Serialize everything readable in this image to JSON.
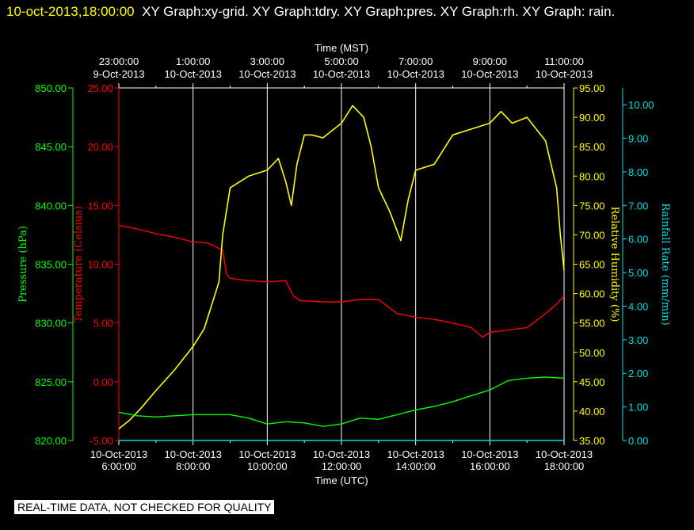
{
  "header": {
    "timestamp": "10-oct-2013,18:00:00",
    "caption": "XY Graph:xy-grid.  XY Graph:tdry.  XY Graph:pres.  XY Graph:rh.  XY Graph: rain."
  },
  "disclaimer": "REAL-TIME DATA, NOT CHECKED FOR QUALITY",
  "colors": {
    "pressure": "#00ff00",
    "temperature": "#ff0000",
    "humidity": "#ffff00",
    "rain": "#00e0e0",
    "grid": "#ffffff",
    "background": "#000000"
  },
  "chart_data": {
    "type": "line",
    "grid": true,
    "xlabel_bottom": "Time (UTC)",
    "xlabel_top": "Time (MST)",
    "x_ticks_bottom": [
      {
        "date": "10-Oct-2013",
        "time": "6:00:00"
      },
      {
        "date": "10-Oct-2013",
        "time": "8:00:00"
      },
      {
        "date": "10-Oct-2013",
        "time": "10:00:00"
      },
      {
        "date": "10-Oct-2013",
        "time": "12:00:00"
      },
      {
        "date": "10-Oct-2013",
        "time": "14:00:00"
      },
      {
        "date": "10-Oct-2013",
        "time": "16:00:00"
      },
      {
        "date": "10-Oct-2013",
        "time": "18:00:00"
      }
    ],
    "x_ticks_top": [
      {
        "time": "23:00:00",
        "date": "9-Oct-2013"
      },
      {
        "time": "1:00:00",
        "date": "10-Oct-2013"
      },
      {
        "time": "3:00:00",
        "date": "10-Oct-2013"
      },
      {
        "time": "5:00:00",
        "date": "10-Oct-2013"
      },
      {
        "time": "7:00:00",
        "date": "10-Oct-2013"
      },
      {
        "time": "9:00:00",
        "date": "10-Oct-2013"
      },
      {
        "time": "11:00:00",
        "date": "10-Oct-2013"
      }
    ],
    "xlim": [
      6,
      19
    ],
    "axes": {
      "pressure": {
        "label": "Pressure (hPa)",
        "ylim": [
          820,
          850
        ],
        "ticks": [
          "820.00",
          "825.00",
          "830.00",
          "835.00",
          "840.00",
          "845.00",
          "850.00"
        ]
      },
      "temperature": {
        "label": "Temperature (Celsius)",
        "ylim": [
          -5,
          25
        ],
        "ticks": [
          "-5.00",
          "0.00",
          "5.00",
          "10.00",
          "15.00",
          "20.00",
          "25.00"
        ]
      },
      "humidity": {
        "label": "Relative Humidity (%)",
        "ylim": [
          35,
          95
        ],
        "ticks": [
          "35.00",
          "40.00",
          "45.00",
          "50.00",
          "55.00",
          "60.00",
          "65.00",
          "70.00",
          "75.00",
          "80.00",
          "85.00",
          "90.00",
          "95.00"
        ]
      },
      "rain": {
        "label": "Rainfall Rate (mm/min)",
        "ylim": [
          0,
          10.5
        ],
        "ticks": [
          "0.00",
          "1.00",
          "2.00",
          "3.00",
          "4.00",
          "5.00",
          "6.00",
          "7.00",
          "8.00",
          "9.00",
          "10.00"
        ]
      }
    },
    "series": [
      {
        "name": "Temperature",
        "axis": "temperature",
        "x": [
          6.0,
          6.5,
          7.0,
          7.5,
          8.0,
          8.4,
          8.8,
          8.9,
          9.0,
          9.5,
          10.0,
          10.5,
          10.7,
          10.9,
          11.5,
          12.0,
          12.5,
          13.0,
          13.5,
          14.0,
          14.5,
          15.0,
          15.5,
          15.8,
          16.0,
          16.5,
          17.0,
          17.5,
          17.8,
          18.0
        ],
        "y": [
          13.3,
          13.0,
          12.6,
          12.3,
          11.9,
          11.8,
          11.2,
          9.2,
          8.8,
          8.6,
          8.5,
          8.6,
          7.3,
          6.9,
          6.8,
          6.8,
          7.0,
          7.0,
          5.8,
          5.5,
          5.3,
          5.0,
          4.6,
          3.8,
          4.2,
          4.4,
          4.6,
          5.8,
          6.6,
          7.3
        ]
      },
      {
        "name": "Relative Humidity",
        "axis": "humidity",
        "x": [
          6.0,
          6.3,
          6.6,
          7.0,
          7.5,
          8.0,
          8.3,
          8.7,
          8.8,
          8.9,
          9.0,
          9.5,
          10.0,
          10.3,
          10.5,
          10.65,
          10.8,
          11.0,
          11.2,
          11.5,
          12.0,
          12.3,
          12.6,
          12.8,
          13.0,
          13.3,
          13.6,
          13.8,
          14.0,
          14.5,
          15.0,
          15.5,
          16.0,
          16.3,
          16.6,
          17.0,
          17.5,
          17.8,
          17.9,
          18.0
        ],
        "y": [
          37.0,
          38.5,
          40.5,
          43.5,
          47.0,
          51.0,
          54.0,
          62.0,
          70.0,
          74.0,
          78.0,
          80.0,
          81.0,
          83.0,
          79.0,
          75.0,
          82.0,
          87.0,
          87.0,
          86.5,
          89.0,
          92.0,
          90.0,
          85.0,
          78.0,
          74.0,
          69.0,
          76.0,
          81.0,
          82.0,
          87.0,
          88.0,
          89.0,
          91.0,
          89.0,
          90.0,
          86.0,
          78.0,
          70.0,
          64.0
        ]
      },
      {
        "name": "Pressure",
        "axis": "pressure",
        "x": [
          6.0,
          6.5,
          7.0,
          7.5,
          8.0,
          8.5,
          9.0,
          9.5,
          10.0,
          10.5,
          11.0,
          11.5,
          12.0,
          12.5,
          13.0,
          13.5,
          14.0,
          14.5,
          15.0,
          15.5,
          16.0,
          16.5,
          17.0,
          17.5,
          18.0
        ],
        "y": [
          822.4,
          822.1,
          822.0,
          822.1,
          822.2,
          822.2,
          822.2,
          821.9,
          821.4,
          821.6,
          821.5,
          821.2,
          821.4,
          821.9,
          821.8,
          822.2,
          822.6,
          822.9,
          823.3,
          823.8,
          824.3,
          825.1,
          825.3,
          825.4,
          825.3
        ]
      },
      {
        "name": "Rainfall Rate",
        "axis": "rain",
        "x": [
          6.0,
          18.0
        ],
        "y": [
          0,
          0
        ]
      }
    ]
  }
}
